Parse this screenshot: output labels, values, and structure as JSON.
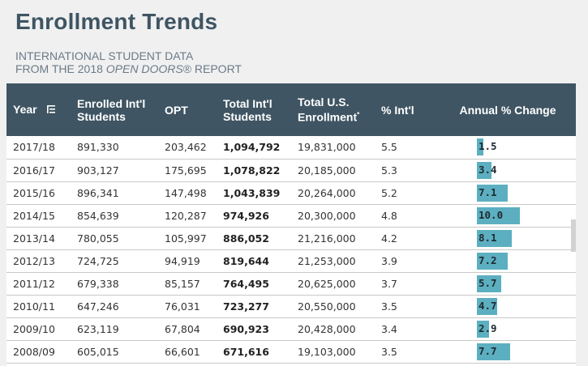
{
  "page": {
    "title": "Enrollment Trends",
    "subtitle_line1": "INTERNATIONAL STUDENT DATA",
    "subtitle_line2_prefix": "FROM THE 2018 ",
    "subtitle_line2_italic": "OPEN DOORS",
    "subtitle_line2_suffix": "® REPORT"
  },
  "table": {
    "headers": {
      "year": "Year",
      "enrolled_line1": "Enrolled Int'l",
      "enrolled_line2": "Students",
      "opt": "OPT",
      "total_line1": "Total Int'l",
      "total_line2": "Students",
      "us_line1": "Total U.S.",
      "us_line2": "Enrollment",
      "us_marker": "*",
      "pct": "% Int'l",
      "change": "Annual % Change"
    },
    "sort_icon": "sort-filter-icon",
    "bar_color": "#5cafc0",
    "header_color": "#3f5563",
    "change_max": 10.0,
    "rows": [
      {
        "year": "2017/18",
        "enrolled": "891,330",
        "opt": "203,462",
        "total": "1,094,792",
        "us": "19,831,000",
        "pct": "5.5",
        "change": "1.5"
      },
      {
        "year": "2016/17",
        "enrolled": "903,127",
        "opt": "175,695",
        "total": "1,078,822",
        "us": "20,185,000",
        "pct": "5.3",
        "change": "3.4"
      },
      {
        "year": "2015/16",
        "enrolled": "896,341",
        "opt": "147,498",
        "total": "1,043,839",
        "us": "20,264,000",
        "pct": "5.2",
        "change": "7.1"
      },
      {
        "year": "2014/15",
        "enrolled": "854,639",
        "opt": "120,287",
        "total": "974,926",
        "us": "20,300,000",
        "pct": "4.8",
        "change": "10.0"
      },
      {
        "year": "2013/14",
        "enrolled": "780,055",
        "opt": "105,997",
        "total": "886,052",
        "us": "21,216,000",
        "pct": "4.2",
        "change": "8.1"
      },
      {
        "year": "2012/13",
        "enrolled": "724,725",
        "opt": "94,919",
        "total": "819,644",
        "us": "21,253,000",
        "pct": "3.9",
        "change": "7.2"
      },
      {
        "year": "2011/12",
        "enrolled": "679,338",
        "opt": "85,157",
        "total": "764,495",
        "us": "20,625,000",
        "pct": "3.7",
        "change": "5.7"
      },
      {
        "year": "2010/11",
        "enrolled": "647,246",
        "opt": "76,031",
        "total": "723,277",
        "us": "20,550,000",
        "pct": "3.5",
        "change": "4.7"
      },
      {
        "year": "2009/10",
        "enrolled": "623,119",
        "opt": "67,804",
        "total": "690,923",
        "us": "20,428,000",
        "pct": "3.4",
        "change": "2.9"
      },
      {
        "year": "2008/09",
        "enrolled": "605,015",
        "opt": "66,601",
        "total": "671,616",
        "us": "19,103,000",
        "pct": "3.5",
        "change": "7.7"
      }
    ]
  }
}
